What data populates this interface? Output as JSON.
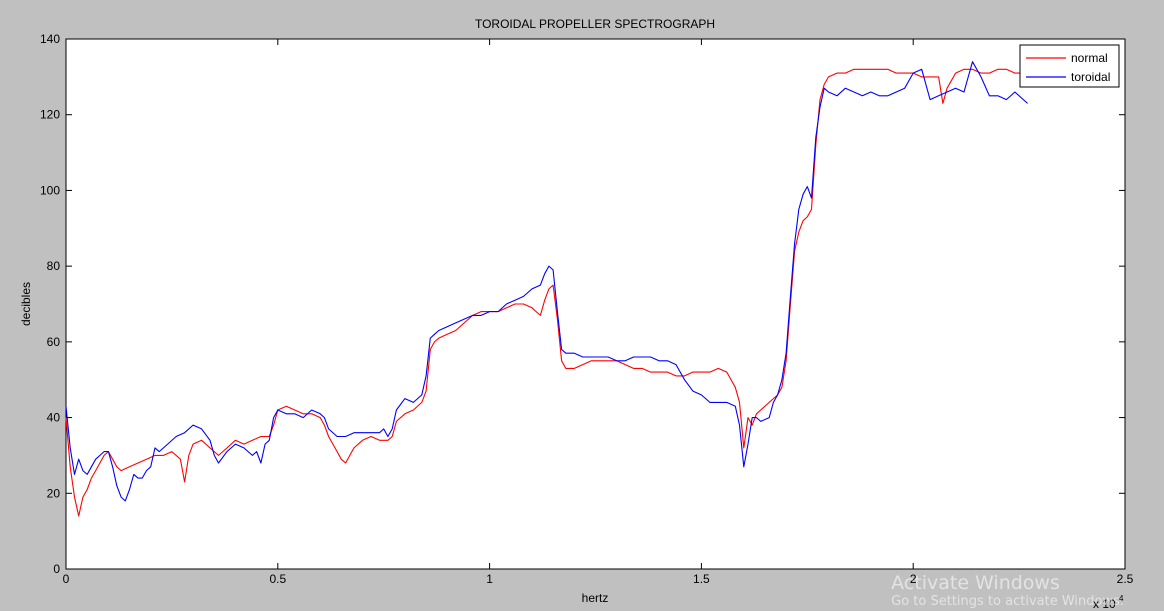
{
  "chart_data": {
    "type": "line",
    "title": "TOROIDAL PROPELLER SPECTROGRAPH",
    "xlabel": "hertz",
    "ylabel": "decibles",
    "x_exponent_label": "x 10",
    "x_exponent_power": "4",
    "xlim": [
      0,
      2.5
    ],
    "ylim": [
      0,
      140
    ],
    "xticks": [
      0,
      0.5,
      1,
      1.5,
      2,
      2.5
    ],
    "xtick_labels": [
      "0",
      "0.5",
      "1",
      "1.5",
      "2",
      "2.5"
    ],
    "yticks": [
      0,
      20,
      40,
      60,
      80,
      100,
      120,
      140
    ],
    "ytick_labels": [
      "0",
      "20",
      "40",
      "60",
      "80",
      "100",
      "120",
      "140"
    ],
    "grid": false,
    "legend_position": "top-right",
    "series": [
      {
        "name": "normal",
        "color": "#ff0000",
        "points": [
          [
            0.0,
            40
          ],
          [
            0.01,
            27
          ],
          [
            0.02,
            19
          ],
          [
            0.03,
            14
          ],
          [
            0.04,
            19
          ],
          [
            0.05,
            21
          ],
          [
            0.06,
            24
          ],
          [
            0.07,
            26
          ],
          [
            0.08,
            28
          ],
          [
            0.09,
            30
          ],
          [
            0.1,
            31
          ],
          [
            0.11,
            29
          ],
          [
            0.12,
            27
          ],
          [
            0.13,
            26
          ],
          [
            0.15,
            27
          ],
          [
            0.17,
            28
          ],
          [
            0.19,
            29
          ],
          [
            0.21,
            30
          ],
          [
            0.23,
            30
          ],
          [
            0.25,
            31
          ],
          [
            0.27,
            29
          ],
          [
            0.28,
            23
          ],
          [
            0.29,
            30
          ],
          [
            0.3,
            33
          ],
          [
            0.32,
            34
          ],
          [
            0.34,
            32
          ],
          [
            0.36,
            30
          ],
          [
            0.38,
            32
          ],
          [
            0.4,
            34
          ],
          [
            0.42,
            33
          ],
          [
            0.44,
            34
          ],
          [
            0.46,
            35
          ],
          [
            0.48,
            35
          ],
          [
            0.49,
            38
          ],
          [
            0.5,
            42
          ],
          [
            0.52,
            43
          ],
          [
            0.54,
            42
          ],
          [
            0.56,
            41
          ],
          [
            0.58,
            41
          ],
          [
            0.6,
            40
          ],
          [
            0.61,
            38
          ],
          [
            0.62,
            35
          ],
          [
            0.63,
            33
          ],
          [
            0.64,
            31
          ],
          [
            0.65,
            29
          ],
          [
            0.66,
            28
          ],
          [
            0.67,
            30
          ],
          [
            0.68,
            32
          ],
          [
            0.7,
            34
          ],
          [
            0.72,
            35
          ],
          [
            0.74,
            34
          ],
          [
            0.76,
            34
          ],
          [
            0.77,
            35
          ],
          [
            0.78,
            39
          ],
          [
            0.8,
            41
          ],
          [
            0.82,
            42
          ],
          [
            0.84,
            44
          ],
          [
            0.85,
            47
          ],
          [
            0.86,
            58
          ],
          [
            0.87,
            60
          ],
          [
            0.88,
            61
          ],
          [
            0.9,
            62
          ],
          [
            0.92,
            63
          ],
          [
            0.94,
            65
          ],
          [
            0.96,
            67
          ],
          [
            0.98,
            68
          ],
          [
            1.0,
            68
          ],
          [
            1.02,
            68
          ],
          [
            1.04,
            69
          ],
          [
            1.06,
            70
          ],
          [
            1.08,
            70
          ],
          [
            1.1,
            69
          ],
          [
            1.11,
            68
          ],
          [
            1.12,
            67
          ],
          [
            1.13,
            71
          ],
          [
            1.14,
            74
          ],
          [
            1.15,
            75
          ],
          [
            1.16,
            66
          ],
          [
            1.17,
            55
          ],
          [
            1.18,
            53
          ],
          [
            1.2,
            53
          ],
          [
            1.22,
            54
          ],
          [
            1.24,
            55
          ],
          [
            1.26,
            55
          ],
          [
            1.28,
            55
          ],
          [
            1.3,
            55
          ],
          [
            1.32,
            54
          ],
          [
            1.34,
            53
          ],
          [
            1.36,
            53
          ],
          [
            1.38,
            52
          ],
          [
            1.4,
            52
          ],
          [
            1.42,
            52
          ],
          [
            1.44,
            51
          ],
          [
            1.46,
            51
          ],
          [
            1.48,
            52
          ],
          [
            1.5,
            52
          ],
          [
            1.52,
            52
          ],
          [
            1.54,
            53
          ],
          [
            1.56,
            52
          ],
          [
            1.58,
            48
          ],
          [
            1.59,
            44
          ],
          [
            1.6,
            32
          ],
          [
            1.61,
            40
          ],
          [
            1.62,
            38
          ],
          [
            1.63,
            41
          ],
          [
            1.64,
            42
          ],
          [
            1.66,
            44
          ],
          [
            1.68,
            46
          ],
          [
            1.69,
            48
          ],
          [
            1.7,
            55
          ],
          [
            1.71,
            70
          ],
          [
            1.72,
            84
          ],
          [
            1.73,
            89
          ],
          [
            1.74,
            92
          ],
          [
            1.75,
            93
          ],
          [
            1.76,
            95
          ],
          [
            1.77,
            112
          ],
          [
            1.78,
            124
          ],
          [
            1.79,
            128
          ],
          [
            1.8,
            130
          ],
          [
            1.82,
            131
          ],
          [
            1.84,
            131
          ],
          [
            1.86,
            132
          ],
          [
            1.88,
            132
          ],
          [
            1.9,
            132
          ],
          [
            1.92,
            132
          ],
          [
            1.94,
            132
          ],
          [
            1.96,
            131
          ],
          [
            1.98,
            131
          ],
          [
            2.0,
            131
          ],
          [
            2.02,
            130
          ],
          [
            2.04,
            130
          ],
          [
            2.06,
            130
          ],
          [
            2.07,
            123
          ],
          [
            2.08,
            127
          ],
          [
            2.1,
            131
          ],
          [
            2.12,
            132
          ],
          [
            2.14,
            132
          ],
          [
            2.16,
            131
          ],
          [
            2.18,
            131
          ],
          [
            2.2,
            132
          ],
          [
            2.22,
            132
          ],
          [
            2.24,
            131
          ],
          [
            2.26,
            131
          ]
        ]
      },
      {
        "name": "toroidal",
        "color": "#0000ff",
        "points": [
          [
            0.0,
            43
          ],
          [
            0.01,
            32
          ],
          [
            0.02,
            25
          ],
          [
            0.03,
            29
          ],
          [
            0.04,
            26
          ],
          [
            0.05,
            25
          ],
          [
            0.06,
            27
          ],
          [
            0.07,
            29
          ],
          [
            0.08,
            30
          ],
          [
            0.09,
            31
          ],
          [
            0.1,
            31
          ],
          [
            0.11,
            27
          ],
          [
            0.12,
            22
          ],
          [
            0.13,
            19
          ],
          [
            0.14,
            18
          ],
          [
            0.15,
            21
          ],
          [
            0.16,
            25
          ],
          [
            0.17,
            24
          ],
          [
            0.18,
            24
          ],
          [
            0.19,
            26
          ],
          [
            0.2,
            27
          ],
          [
            0.21,
            32
          ],
          [
            0.22,
            31
          ],
          [
            0.24,
            33
          ],
          [
            0.26,
            35
          ],
          [
            0.28,
            36
          ],
          [
            0.3,
            38
          ],
          [
            0.32,
            37
          ],
          [
            0.34,
            34
          ],
          [
            0.35,
            30
          ],
          [
            0.36,
            28
          ],
          [
            0.38,
            31
          ],
          [
            0.4,
            33
          ],
          [
            0.42,
            32
          ],
          [
            0.44,
            30
          ],
          [
            0.45,
            31
          ],
          [
            0.46,
            28
          ],
          [
            0.47,
            33
          ],
          [
            0.48,
            34
          ],
          [
            0.49,
            40
          ],
          [
            0.5,
            42
          ],
          [
            0.52,
            41
          ],
          [
            0.54,
            41
          ],
          [
            0.56,
            40
          ],
          [
            0.58,
            42
          ],
          [
            0.6,
            41
          ],
          [
            0.61,
            40
          ],
          [
            0.62,
            37
          ],
          [
            0.64,
            35
          ],
          [
            0.66,
            35
          ],
          [
            0.68,
            36
          ],
          [
            0.7,
            36
          ],
          [
            0.72,
            36
          ],
          [
            0.74,
            36
          ],
          [
            0.75,
            37
          ],
          [
            0.76,
            35
          ],
          [
            0.77,
            37
          ],
          [
            0.78,
            42
          ],
          [
            0.8,
            45
          ],
          [
            0.82,
            44
          ],
          [
            0.84,
            46
          ],
          [
            0.85,
            51
          ],
          [
            0.86,
            61
          ],
          [
            0.87,
            62
          ],
          [
            0.88,
            63
          ],
          [
            0.9,
            64
          ],
          [
            0.92,
            65
          ],
          [
            0.94,
            66
          ],
          [
            0.96,
            67
          ],
          [
            0.98,
            67
          ],
          [
            1.0,
            68
          ],
          [
            1.02,
            68
          ],
          [
            1.04,
            70
          ],
          [
            1.06,
            71
          ],
          [
            1.08,
            72
          ],
          [
            1.1,
            74
          ],
          [
            1.12,
            75
          ],
          [
            1.13,
            78
          ],
          [
            1.14,
            80
          ],
          [
            1.15,
            79
          ],
          [
            1.16,
            68
          ],
          [
            1.17,
            58
          ],
          [
            1.18,
            57
          ],
          [
            1.2,
            57
          ],
          [
            1.22,
            56
          ],
          [
            1.24,
            56
          ],
          [
            1.26,
            56
          ],
          [
            1.28,
            56
          ],
          [
            1.3,
            55
          ],
          [
            1.32,
            55
          ],
          [
            1.34,
            56
          ],
          [
            1.36,
            56
          ],
          [
            1.38,
            56
          ],
          [
            1.4,
            55
          ],
          [
            1.42,
            55
          ],
          [
            1.44,
            54
          ],
          [
            1.46,
            50
          ],
          [
            1.48,
            47
          ],
          [
            1.5,
            46
          ],
          [
            1.52,
            44
          ],
          [
            1.54,
            44
          ],
          [
            1.56,
            44
          ],
          [
            1.58,
            43
          ],
          [
            1.59,
            38
          ],
          [
            1.6,
            27
          ],
          [
            1.61,
            33
          ],
          [
            1.62,
            40
          ],
          [
            1.63,
            40
          ],
          [
            1.64,
            39
          ],
          [
            1.66,
            40
          ],
          [
            1.67,
            44
          ],
          [
            1.68,
            46
          ],
          [
            1.69,
            50
          ],
          [
            1.7,
            57
          ],
          [
            1.71,
            72
          ],
          [
            1.72,
            86
          ],
          [
            1.73,
            95
          ],
          [
            1.74,
            99
          ],
          [
            1.75,
            101
          ],
          [
            1.76,
            98
          ],
          [
            1.77,
            114
          ],
          [
            1.78,
            122
          ],
          [
            1.79,
            127
          ],
          [
            1.8,
            126
          ],
          [
            1.82,
            125
          ],
          [
            1.84,
            127
          ],
          [
            1.86,
            126
          ],
          [
            1.88,
            125
          ],
          [
            1.9,
            126
          ],
          [
            1.92,
            125
          ],
          [
            1.94,
            125
          ],
          [
            1.96,
            126
          ],
          [
            1.98,
            127
          ],
          [
            2.0,
            131
          ],
          [
            2.02,
            132
          ],
          [
            2.04,
            124
          ],
          [
            2.06,
            125
          ],
          [
            2.08,
            126
          ],
          [
            2.1,
            127
          ],
          [
            2.12,
            126
          ],
          [
            2.14,
            134
          ],
          [
            2.16,
            130
          ],
          [
            2.18,
            125
          ],
          [
            2.2,
            125
          ],
          [
            2.22,
            124
          ],
          [
            2.24,
            126
          ],
          [
            2.26,
            124
          ],
          [
            2.27,
            123
          ]
        ]
      }
    ]
  },
  "overlay": {
    "watermark_title": "Activate Windows",
    "watermark_sub": "Go to Settings to activate Windows."
  }
}
